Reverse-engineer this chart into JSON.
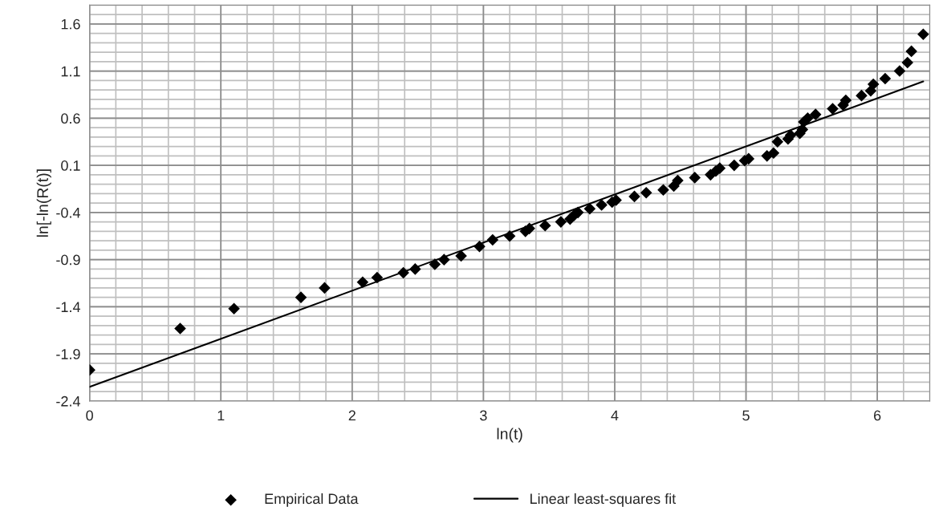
{
  "chart_data": {
    "type": "scatter",
    "xlabel": "ln(t)",
    "ylabel": "ln[-ln(R(t)]",
    "xlim": [
      0,
      6.4
    ],
    "xticks": [
      0,
      1,
      2,
      3,
      4,
      5,
      6
    ],
    "ylim": [
      -2.4,
      1.8
    ],
    "yticks": [
      -2.4,
      -1.9,
      -1.4,
      -0.9,
      -0.4,
      0.1,
      0.6,
      1.1,
      1.6
    ],
    "grid": true,
    "legend": "bottom",
    "series": [
      {
        "name": "Empirical Data",
        "marker": "diamond",
        "color": "#000000",
        "x": [
          0,
          0.69,
          1.1,
          1.61,
          1.79,
          2.08,
          2.19,
          2.39,
          2.48,
          2.63,
          2.7,
          2.83,
          2.97,
          3.07,
          3.2,
          3.32,
          3.35,
          3.47,
          3.59,
          3.66,
          3.69,
          3.72,
          3.81,
          3.9,
          3.98,
          4.01,
          4.15,
          4.24,
          4.37,
          4.45,
          4.48,
          4.61,
          4.73,
          4.77,
          4.8,
          4.91,
          4.99,
          5.02,
          5.16,
          5.21,
          5.24,
          5.32,
          5.34,
          5.41,
          5.43,
          5.44,
          5.47,
          5.53,
          5.66,
          5.74,
          5.76,
          5.88,
          5.95,
          5.97,
          6.06,
          6.17,
          6.23,
          6.26,
          6.35
        ],
        "values": [
          -2.07,
          -1.63,
          -1.42,
          -1.3,
          -1.2,
          -1.14,
          -1.09,
          -1.04,
          -1.0,
          -0.95,
          -0.9,
          -0.86,
          -0.76,
          -0.69,
          -0.65,
          -0.6,
          -0.57,
          -0.54,
          -0.5,
          -0.47,
          -0.43,
          -0.4,
          -0.36,
          -0.32,
          -0.29,
          -0.27,
          -0.23,
          -0.19,
          -0.16,
          -0.12,
          -0.06,
          -0.03,
          0.0,
          0.04,
          0.07,
          0.1,
          0.15,
          0.17,
          0.2,
          0.23,
          0.35,
          0.38,
          0.42,
          0.44,
          0.48,
          0.56,
          0.6,
          0.64,
          0.7,
          0.74,
          0.79,
          0.84,
          0.89,
          0.96,
          1.02,
          1.1,
          1.19,
          1.31,
          1.49
        ]
      },
      {
        "name": "Linear least-squares fit",
        "type": "line",
        "marker": "none",
        "line_style": "solid",
        "color": "#000000",
        "x": [
          0,
          6.35
        ],
        "values": [
          -2.25,
          0.99
        ]
      }
    ]
  }
}
